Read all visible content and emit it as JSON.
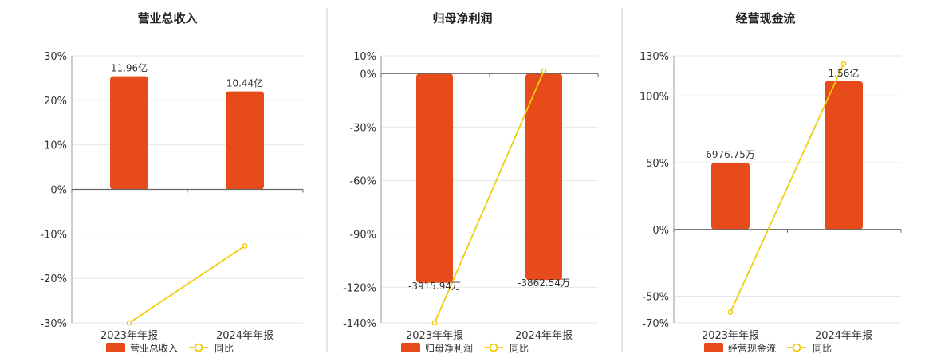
{
  "colors": {
    "bar": "#E84B1A",
    "line": "#F2CC0C",
    "grid": "#E6E6E6",
    "axis": "#666666",
    "divider": "#C8C8C8"
  },
  "chart_data": [
    {
      "type": "bar",
      "title": "营业总收入",
      "categories": [
        "2023年年报",
        "2024年年报"
      ],
      "y_ticks": [
        "30%",
        "20%",
        "10%",
        "0%",
        "-10%",
        "-20%",
        "-30%"
      ],
      "ylim": [
        -30,
        30
      ],
      "series": [
        {
          "name": "营业总收入",
          "type": "bar",
          "values": [
            25.4,
            22.0
          ],
          "data_labels": [
            "11.96亿",
            "10.44亿"
          ]
        },
        {
          "name": "同比",
          "type": "line",
          "values": [
            -30.0,
            -12.7
          ]
        }
      ],
      "legend": "bottom-center"
    },
    {
      "type": "bar",
      "title": "归母净利润",
      "categories": [
        "2023年年报",
        "2024年年报"
      ],
      "y_ticks": [
        "10%",
        "0%",
        "-30%",
        "-60%",
        "-90%",
        "-120%",
        "-140%"
      ],
      "ylim": [
        -140,
        10
      ],
      "series": [
        {
          "name": "归母净利润",
          "type": "bar",
          "values": [
            -117.5,
            -115.9
          ],
          "data_labels": [
            "-3915.94万",
            "-3862.54万"
          ]
        },
        {
          "name": "同比",
          "type": "line",
          "values": [
            -140.0,
            1.5
          ]
        }
      ],
      "legend": "bottom-center"
    },
    {
      "type": "bar",
      "title": "经营现金流",
      "categories": [
        "2023年年报",
        "2024年年报"
      ],
      "y_ticks": [
        "130%",
        "100%",
        "50%",
        "0%",
        "-50%",
        "-70%"
      ],
      "ylim": [
        -70,
        130
      ],
      "series": [
        {
          "name": "经营现金流",
          "type": "bar",
          "values": [
            50.0,
            111.0
          ],
          "data_labels": [
            "6976.75万",
            "1.56亿"
          ]
        },
        {
          "name": "同比",
          "type": "line",
          "values": [
            -62.0,
            124.0
          ]
        }
      ],
      "legend": "bottom-center"
    }
  ]
}
